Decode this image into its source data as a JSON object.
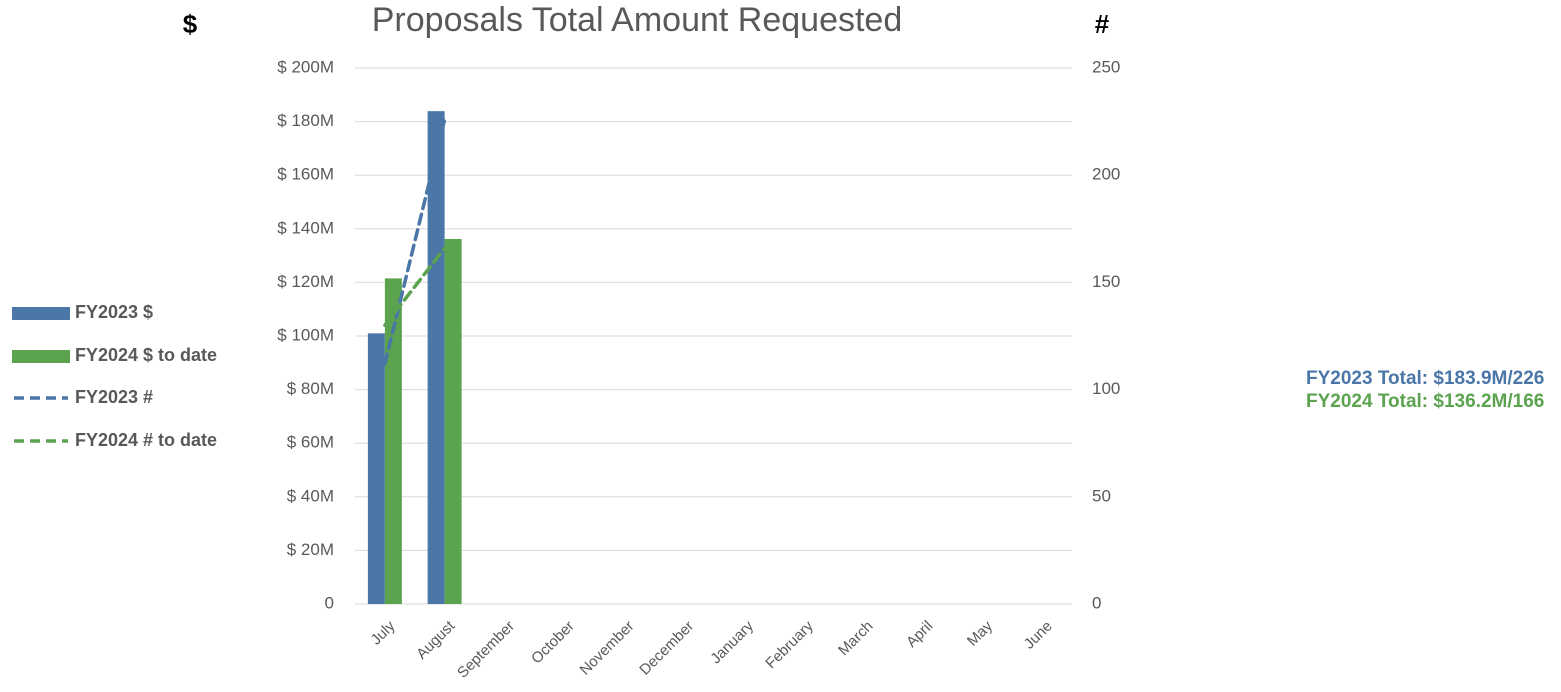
{
  "chart_data": {
    "type": "bar",
    "title": "Proposals Total Amount Requested",
    "y_axis_title": "$",
    "y2_axis_title": "#",
    "categories": [
      "July",
      "August",
      "September",
      "October",
      "November",
      "December",
      "January",
      "February",
      "March",
      "April",
      "May",
      "June"
    ],
    "series": [
      {
        "name": "FY2023 $",
        "type": "bar",
        "color": "#4a76a8",
        "values": [
          101,
          183.9,
          null,
          null,
          null,
          null,
          null,
          null,
          null,
          null,
          null,
          null
        ]
      },
      {
        "name": "FY2024 $ to date",
        "type": "bar",
        "color": "#5ba34e",
        "values": [
          121.5,
          136.2,
          null,
          null,
          null,
          null,
          null,
          null,
          null,
          null,
          null,
          null
        ]
      },
      {
        "name": "FY2023 #",
        "type": "line",
        "axis": "y2",
        "color": "#4a76a8",
        "values": [
          112,
          226,
          null,
          null,
          null,
          null,
          null,
          null,
          null,
          null,
          null,
          null
        ]
      },
      {
        "name": "FY2024 # to date",
        "type": "line",
        "axis": "y2",
        "color": "#5ba34e",
        "values": [
          130,
          166,
          null,
          null,
          null,
          null,
          null,
          null,
          null,
          null,
          null,
          null
        ]
      }
    ],
    "ylim": [
      0,
      200
    ],
    "yticks": [
      0,
      {
        "value": 20,
        "label": "$ 20M"
      },
      {
        "value": 40,
        "label": "$ 40M"
      },
      {
        "value": 60,
        "label": "$ 60M"
      },
      {
        "value": 80,
        "label": "$ 80M"
      },
      {
        "value": 100,
        "label": "$ 100M"
      },
      {
        "value": 120,
        "label": "$ 120M"
      },
      {
        "value": 140,
        "label": "$ 140M"
      },
      {
        "value": 160,
        "label": "$ 160M"
      },
      {
        "value": 180,
        "label": "$ 180M"
      },
      {
        "value": 200,
        "label": "$ 200M"
      }
    ],
    "y2lim": [
      0,
      250
    ],
    "y2ticks": [
      0,
      50,
      100,
      150,
      200,
      250
    ],
    "grid": true,
    "legend": "left",
    "annotations": [
      {
        "text": "FY2023 Total: $183.9M/226",
        "color": "#4a76a8"
      },
      {
        "text": "FY2024 Total: $136.2M/166",
        "color": "#5ba34e"
      }
    ]
  }
}
